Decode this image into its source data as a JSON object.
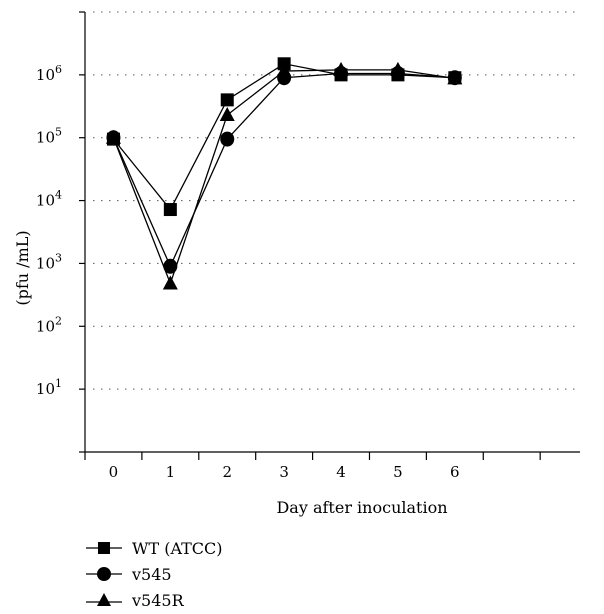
{
  "chart_data": {
    "type": "line",
    "xlabel": "Day after inoculation",
    "ylabel": "(pfu /mL)",
    "x": [
      0,
      1,
      2,
      3,
      4,
      5,
      6
    ],
    "x_ticks": [
      "0",
      "1",
      "2",
      "3",
      "4",
      "5",
      "6"
    ],
    "y_scale": "log",
    "y_ticks": [
      {
        "base": "10",
        "exp": "1",
        "value": 10
      },
      {
        "base": "10",
        "exp": "2",
        "value": 100
      },
      {
        "base": "10",
        "exp": "3",
        "value": 1000
      },
      {
        "base": "10",
        "exp": "4",
        "value": 10000
      },
      {
        "base": "10",
        "exp": "5",
        "value": 100000
      },
      {
        "base": "10",
        "exp": "6",
        "value": 1000000
      }
    ],
    "ylim": [
      1,
      10000000
    ],
    "xlim": [
      -0.5,
      8.2
    ],
    "grid": "horizontal dotted",
    "legend_position": "bottom-left",
    "series": [
      {
        "name": "WT (ATCC)",
        "marker": "square",
        "values": [
          95000,
          7200,
          400000,
          1500000,
          1000000,
          1000000,
          900000
        ]
      },
      {
        "name": "v545",
        "marker": "circle",
        "values": [
          100000,
          900,
          95000,
          900000,
          1050000,
          1050000,
          900000
        ]
      },
      {
        "name": "v545R",
        "marker": "triangle",
        "values": [
          100000,
          480,
          230000,
          1150000,
          1200000,
          1200000,
          880000
        ]
      }
    ]
  }
}
